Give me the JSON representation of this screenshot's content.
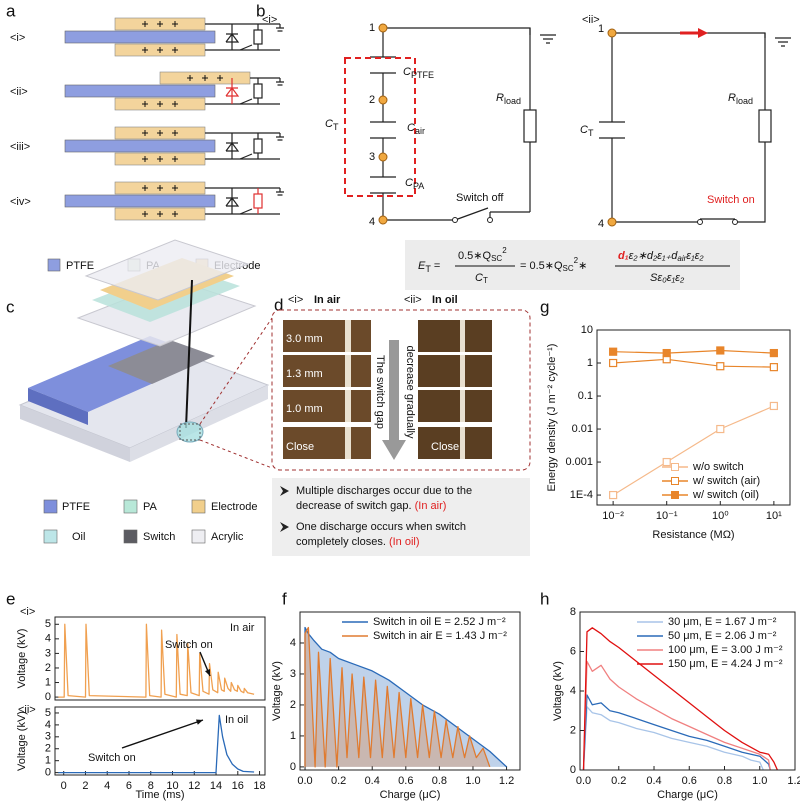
{
  "panel_labels": [
    "a",
    "b",
    "c",
    "d",
    "e",
    "f",
    "g",
    "h"
  ],
  "panel_a": {
    "tags": [
      "<i>",
      "<ii>",
      "<iii>",
      "<iv>"
    ],
    "legend": [
      "PTFE",
      "PA",
      "Electrode"
    ]
  },
  "panel_b": {
    "tags": [
      "<i>",
      "<ii>"
    ],
    "nodes_i": [
      "1",
      "2",
      "3",
      "4"
    ],
    "nodes_ii": [
      "1",
      "4"
    ],
    "C_PTFE": {
      "symbol": "C",
      "sub": "PTFE"
    },
    "C_air": {
      "symbol": "C",
      "sub": "air"
    },
    "C_PA": {
      "symbol": "C",
      "sub": "PA"
    },
    "C_T": {
      "symbol": "C",
      "sub": "T"
    },
    "R_load": {
      "symbol": "R",
      "sub": "load"
    },
    "switch_off": "Switch off",
    "switch_on": "Switch on",
    "formula": {
      "E": "E",
      "E_sub": "T",
      "eq1": "=",
      "num1": "0.5∗Q",
      "num1_sub": "SC",
      "num1_sup": "2",
      "den1": "C",
      "den1_sub": "T",
      "eq2": "= 0.5∗Q",
      "q_sub": "SC",
      "q_sup": "2",
      "times": "∗",
      "d1": "d₁",
      "num2": "ε₂∗d₂ε₁₊d",
      "num2_sub": "air",
      "num2_end": "ε₁ε₂",
      "den2": "Sε₀ε₁ε₂"
    }
  },
  "panel_c": {
    "legend": [
      "PTFE",
      "PA",
      "Electrode",
      "Oil",
      "Switch",
      "Acrylic"
    ]
  },
  "panel_d": {
    "tags": [
      "<i>",
      "<ii>"
    ],
    "titles": [
      "In air",
      "In oil"
    ],
    "gaps": [
      "3.0 mm",
      "1.3 mm",
      "1.0 mm",
      "Close"
    ],
    "arrow_text": [
      "The switch gap",
      "decrease gradually"
    ],
    "notes": [
      {
        "lines": [
          "Multiple discharges occur due to the",
          "decrease of switch gap."
        ],
        "tag": "(In air)"
      },
      {
        "lines": [
          "One discharge occurs when switch",
          "completely closes."
        ],
        "tag": "(In oil)"
      }
    ]
  },
  "chart_data": [
    {
      "type": "line",
      "tag": "<i>",
      "ylabel": "Voltage (kV)",
      "xlim": [
        -0.8,
        18.5
      ],
      "ylim": [
        -0.2,
        5.5
      ],
      "yticks": [
        0,
        1,
        2,
        3,
        4,
        5
      ],
      "annotations": [
        "In air",
        "Switch on"
      ],
      "series": [
        {
          "color": "#f0a050",
          "x": [
            -0.5,
            0.05,
            0.1,
            0.4,
            2.0,
            2.05,
            2.35,
            7.55,
            7.6,
            7.9,
            8.95,
            9.0,
            9.3,
            10.35,
            10.4,
            10.7,
            11.35,
            11.4,
            11.7,
            12.45,
            12.5,
            12.8,
            13.35,
            13.4,
            13.7,
            14.15,
            14.2,
            14.5,
            14.75,
            14.8,
            15.1,
            15.35,
            15.4,
            15.7,
            15.95,
            16.0,
            16.3,
            16.55,
            16.6,
            16.9,
            17.5
          ],
          "values": [
            0,
            0,
            5,
            0.1,
            0,
            5,
            0.1,
            0,
            5,
            0.1,
            0,
            4.6,
            0.2,
            0,
            4.3,
            0.2,
            0.1,
            3.7,
            0.3,
            0.1,
            3.0,
            0.4,
            0.2,
            2.3,
            0.5,
            0.3,
            1.7,
            0.5,
            0.4,
            1.3,
            0.6,
            0.4,
            1.0,
            0.5,
            0.4,
            0.8,
            0.4,
            0.3,
            0.6,
            0.3,
            0.2
          ]
        }
      ]
    },
    {
      "type": "line",
      "tag": "<ii>",
      "ylabel": "Voltage (kV)",
      "xlabel": "Time (ms)",
      "xlim": [
        -0.8,
        18.5
      ],
      "ylim": [
        -0.2,
        5.5
      ],
      "yticks": [
        0,
        1,
        2,
        3,
        4,
        5
      ],
      "xticks": [
        0,
        2,
        4,
        6,
        8,
        10,
        12,
        14,
        16,
        18
      ],
      "annotations": [
        "In oil",
        "Switch on"
      ],
      "series": [
        {
          "color": "#2a6ab8",
          "x": [
            -0.5,
            14.0,
            14.3,
            14.6,
            15.0,
            15.5,
            16.0,
            16.5,
            17.5
          ],
          "values": [
            0,
            0,
            4.8,
            3.0,
            1.5,
            0.7,
            0.3,
            0.1,
            0.05
          ]
        }
      ]
    },
    {
      "type": "line",
      "fill_area": true,
      "xlabel": "Charge (μC)",
      "ylabel": "Voltage (kV)",
      "xlim": [
        -0.03,
        1.28
      ],
      "ylim": [
        -0.1,
        5
      ],
      "yticks": [
        0,
        1,
        2,
        3,
        4
      ],
      "xticks": [
        {
          "value": 0,
          "label": "0.0"
        },
        0.2,
        0.4,
        0.6,
        0.8,
        {
          "value": 1,
          "label": "1.0"
        },
        1.2
      ],
      "legend": "upper right",
      "series": [
        {
          "name": "Switch in oil E = 2.52 J m⁻²",
          "color": "#2a6ab8",
          "x": [
            0,
            0,
            0.02,
            0.05,
            0.1,
            0.15,
            0.2,
            0.3,
            0.4,
            0.5,
            0.6,
            0.7,
            0.8,
            0.9,
            1.0,
            1.1,
            1.2
          ],
          "values": [
            0,
            4.5,
            4.3,
            4.1,
            3.8,
            3.7,
            3.5,
            3.3,
            3.1,
            2.8,
            2.4,
            2.0,
            1.7,
            1.3,
            0.9,
            0.5,
            0
          ]
        },
        {
          "name": "Switch in air E = 1.43 J m⁻²",
          "color": "#e07b30",
          "x": [
            0,
            0,
            0.02,
            0.06,
            0.08,
            0.12,
            0.15,
            0.19,
            0.22,
            0.25,
            0.28,
            0.32,
            0.35,
            0.39,
            0.42,
            0.46,
            0.49,
            0.53,
            0.56,
            0.6,
            0.63,
            0.67,
            0.7,
            0.74,
            0.77,
            0.81,
            0.84,
            0.88,
            0.91,
            0.95,
            0.98,
            1.02,
            1.06,
            1.1
          ],
          "values": [
            0,
            4.3,
            4.5,
            0,
            3.7,
            0,
            3.5,
            0,
            3.2,
            0.3,
            3.0,
            0.3,
            2.9,
            0.3,
            2.8,
            0.3,
            2.6,
            0.3,
            2.4,
            0.3,
            2.2,
            0.3,
            2.0,
            0.3,
            1.8,
            0.3,
            1.5,
            0.3,
            1.3,
            0.3,
            1.0,
            0.3,
            0.6,
            0
          ]
        }
      ]
    },
    {
      "type": "line",
      "log_x": true,
      "log_y": true,
      "markers": true,
      "xlabel": "Resistance (MΩ)",
      "ylabel": "Energy density (J m⁻² cycle⁻¹)",
      "xlim": [
        0.005,
        20
      ],
      "ylim": [
        5e-05,
        10
      ],
      "xticks": [
        {
          "value": 0.01,
          "label": "10⁻²"
        },
        {
          "value": 0.1,
          "label": "10⁻¹"
        },
        {
          "value": 1,
          "label": "10⁰"
        },
        {
          "value": 10,
          "label": "10¹"
        }
      ],
      "yticks": [
        {
          "value": 0.0001,
          "label": "1E-4"
        },
        0.001,
        0.01,
        0.1,
        1,
        10
      ],
      "legend": "lower right",
      "series": [
        {
          "name": "w/o switch",
          "color": "#f5b98a",
          "marker_fill": false,
          "x": [
            0.01,
            0.1,
            1,
            10
          ],
          "values": [
            0.0001,
            0.001,
            0.01,
            0.05
          ]
        },
        {
          "name": "w/  switch (air)",
          "color": "#e8852a",
          "marker_fill": false,
          "x": [
            0.01,
            0.1,
            1,
            10
          ],
          "values": [
            1.0,
            1.3,
            0.8,
            0.75
          ]
        },
        {
          "name": "w/  switch (oil)",
          "color": "#e8852a",
          "marker_fill": true,
          "x": [
            0.01,
            0.1,
            1,
            10
          ],
          "values": [
            2.2,
            2.0,
            2.4,
            2.0
          ]
        }
      ]
    },
    {
      "type": "line",
      "xlabel": "Charge (μC)",
      "ylabel": "Voltage (kV)",
      "xlim": [
        -0.02,
        1.2
      ],
      "ylim": [
        0,
        8
      ],
      "yticks": [
        0,
        2,
        4,
        6,
        8
      ],
      "xticks": [
        {
          "value": 0,
          "label": "0.0"
        },
        0.2,
        0.4,
        0.6,
        0.8,
        {
          "value": 1,
          "label": "1.0"
        },
        1.2
      ],
      "legend": "upper right",
      "series": [
        {
          "name": "30 μm, E = 1.67 J m⁻²",
          "color": "#a8c4e8",
          "x": [
            0,
            0.02,
            0.05,
            0.1,
            0.15,
            0.2,
            0.3,
            0.4,
            0.5,
            0.6,
            0.7,
            0.8,
            0.9,
            0.95,
            1.0,
            1.02
          ],
          "values": [
            0,
            3.2,
            2.9,
            2.8,
            2.5,
            2.4,
            2.1,
            1.9,
            1.6,
            1.4,
            1.2,
            0.9,
            0.7,
            0.5,
            0.4,
            0
          ]
        },
        {
          "name": "50 μm, E = 2.06 J m⁻²",
          "color": "#2a6ab8",
          "x": [
            0,
            0.02,
            0.05,
            0.1,
            0.15,
            0.2,
            0.3,
            0.4,
            0.5,
            0.6,
            0.7,
            0.8,
            0.9,
            1.0,
            1.05,
            1.06
          ],
          "values": [
            0,
            3.8,
            3.3,
            3.4,
            3.0,
            2.9,
            2.6,
            2.3,
            2.0,
            1.7,
            1.5,
            1.2,
            0.9,
            0.7,
            0.3,
            0
          ]
        },
        {
          "name": "100 μm, E = 3.00 J m⁻²",
          "color": "#f08080",
          "x": [
            0,
            0.02,
            0.05,
            0.1,
            0.15,
            0.2,
            0.3,
            0.4,
            0.5,
            0.6,
            0.7,
            0.8,
            0.9,
            1.0,
            1.05,
            1.06
          ],
          "values": [
            0,
            5.5,
            5.0,
            5.3,
            4.6,
            4.2,
            3.6,
            3.1,
            2.6,
            2.2,
            1.8,
            1.4,
            1.1,
            0.8,
            0.5,
            0
          ]
        },
        {
          "name": "150 μm, E = 4.24 J m⁻²",
          "color": "#e01010",
          "x": [
            0,
            0.02,
            0.05,
            0.1,
            0.15,
            0.2,
            0.3,
            0.4,
            0.5,
            0.6,
            0.7,
            0.8,
            0.9,
            1.0,
            1.05,
            1.08,
            1.1
          ],
          "values": [
            0,
            7.0,
            7.2,
            6.9,
            6.5,
            6.2,
            5.5,
            4.8,
            4.1,
            3.4,
            2.7,
            2.0,
            1.4,
            0.9,
            0.8,
            0.4,
            0
          ]
        }
      ]
    }
  ]
}
